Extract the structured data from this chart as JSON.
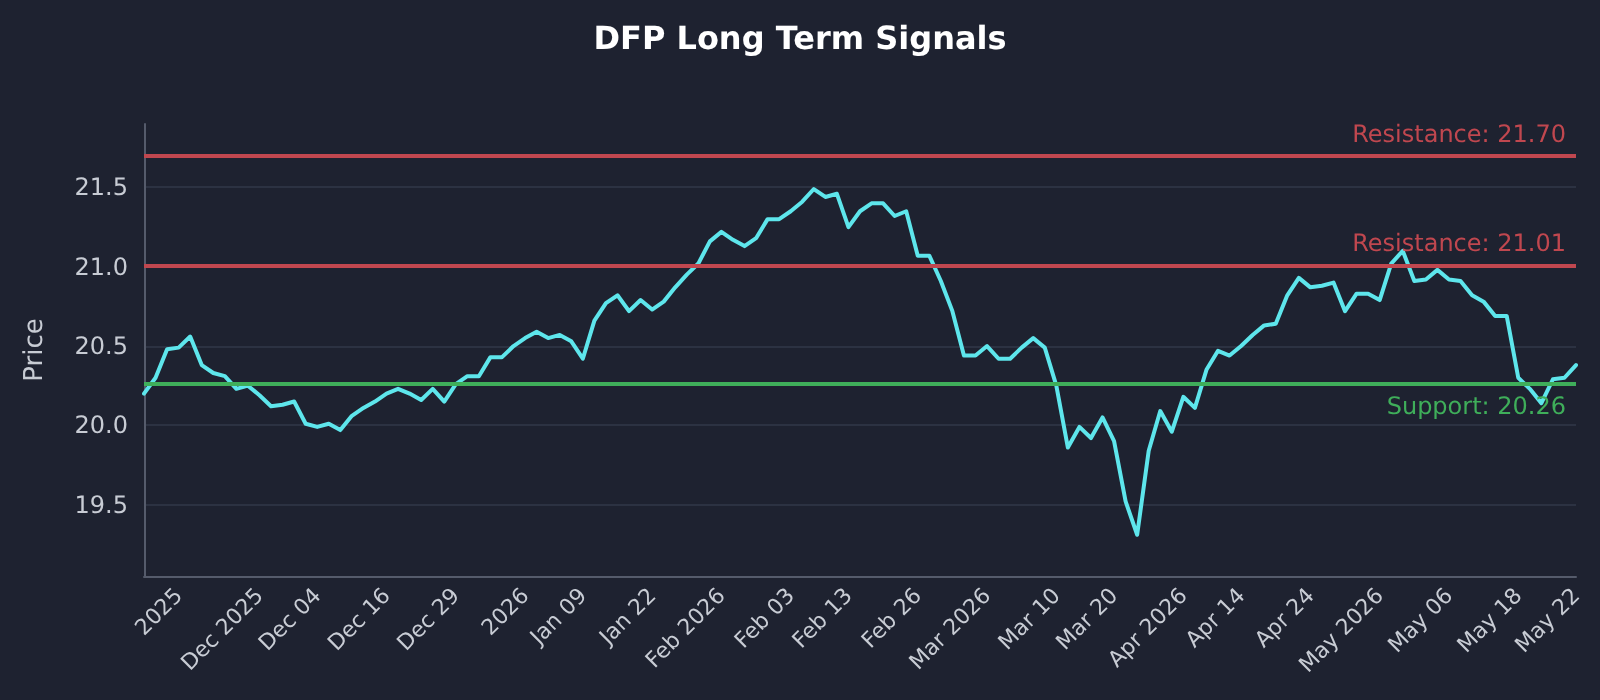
{
  "chart_data": {
    "type": "line",
    "title": "DFP Long Term Signals",
    "ylabel": "Price",
    "categories": [
      null,
      null,
      null,
      "2025",
      null,
      null,
      null,
      null,
      null,
      null,
      "Dec 2025",
      null,
      null,
      null,
      null,
      "Dec 04",
      null,
      null,
      null,
      null,
      null,
      "Dec 16",
      null,
      null,
      null,
      null,
      null,
      "Dec 29",
      null,
      null,
      null,
      null,
      null,
      "2026",
      null,
      null,
      null,
      null,
      "Jan 09",
      null,
      null,
      null,
      null,
      null,
      "Jan 22",
      null,
      null,
      null,
      null,
      null,
      "Feb 2026",
      null,
      null,
      null,
      null,
      null,
      "Feb 03",
      null,
      null,
      null,
      null,
      "Feb 13",
      null,
      null,
      null,
      null,
      null,
      "Feb 26",
      null,
      null,
      null,
      null,
      null,
      "Mar 2026",
      null,
      null,
      null,
      null,
      null,
      "Mar 10",
      null,
      null,
      null,
      null,
      "Mar 20",
      null,
      null,
      null,
      null,
      null,
      "Apr 2026",
      null,
      null,
      null,
      null,
      "Apr 14",
      null,
      null,
      null,
      null,
      null,
      "Apr 24",
      null,
      null,
      null,
      null,
      null,
      "May 2026",
      null,
      null,
      null,
      null,
      null,
      "May 06",
      null,
      null,
      null,
      null,
      null,
      "May 18",
      null,
      null,
      null,
      null,
      "May 22"
    ],
    "series": [
      {
        "color": "#5ee6ec",
        "values": [
          20.2,
          20.3,
          20.48,
          20.49,
          20.56,
          20.38,
          20.33,
          20.31,
          20.23,
          20.25,
          20.19,
          20.12,
          20.13,
          20.15,
          20.01,
          19.99,
          20.01,
          19.97,
          20.06,
          20.11,
          20.15,
          20.2,
          20.23,
          20.2,
          20.16,
          20.23,
          20.15,
          20.26,
          20.31,
          20.31,
          20.43,
          20.43,
          20.5,
          20.55,
          20.59,
          20.55,
          20.57,
          20.53,
          20.42,
          20.66,
          20.77,
          20.82,
          20.72,
          20.79,
          20.73,
          20.78,
          20.87,
          20.95,
          21.02,
          21.16,
          21.22,
          21.17,
          21.13,
          21.18,
          21.3,
          21.3,
          21.35,
          21.41,
          21.49,
          21.44,
          21.46,
          21.25,
          21.35,
          21.4,
          21.4,
          21.32,
          21.35,
          21.07,
          21.07,
          20.91,
          20.72,
          20.44,
          20.44,
          20.5,
          20.42,
          20.42,
          20.49,
          20.55,
          20.49,
          20.25,
          19.86,
          19.99,
          19.92,
          20.05,
          19.9,
          19.52,
          19.31,
          19.84,
          20.09,
          19.96,
          20.18,
          20.11,
          20.35,
          20.47,
          20.44,
          20.5,
          20.57,
          20.63,
          20.64,
          20.82,
          20.93,
          20.87,
          20.88,
          20.9,
          20.72,
          20.83,
          20.83,
          20.79,
          21.02,
          21.1,
          20.91,
          20.92,
          20.98,
          20.92,
          20.91,
          20.82,
          20.78,
          20.69,
          20.69,
          20.3,
          20.23,
          20.14,
          20.29,
          20.3,
          20.38
        ]
      }
    ],
    "ylim": [
      19.05,
      21.9
    ],
    "yticks": [
      19.5,
      {
        "value": 20,
        "label": "20.0"
      },
      20.5,
      {
        "value": 21,
        "label": "21.0"
      },
      21.5
    ],
    "grid": "y",
    "ref_lines": [
      {
        "axis": "y",
        "value": 21.7,
        "label": "Resistance: 21.70",
        "color": "#c0474f"
      },
      {
        "axis": "y",
        "value": 21.01,
        "label": "Resistance: 21.01",
        "color": "#c0474f"
      },
      {
        "axis": "y",
        "value": 20.26,
        "label": "Support: 20.26",
        "color": "#3fae5a"
      }
    ]
  }
}
